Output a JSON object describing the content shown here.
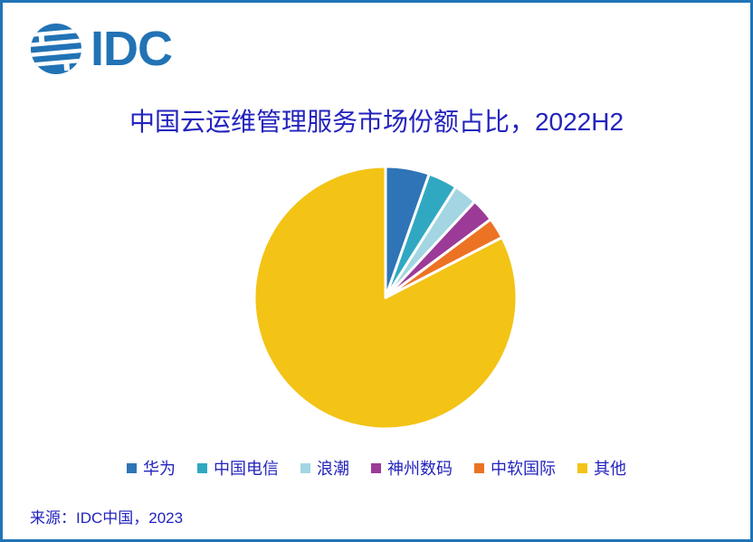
{
  "colors": {
    "brand_blue": "#2173B5",
    "border": "#2173B5",
    "text_blue": "#2323BE",
    "background": "#FFFFFF",
    "slice_gap": "#FFFFFF"
  },
  "logo": {
    "text": "IDC"
  },
  "title": "中国云运维管理服务市场份额占比，2022H2",
  "source": "来源：IDC中国，2023",
  "chart_data": {
    "type": "pie",
    "title": "中国云运维管理服务市场份额占比，2022H2",
    "start_angle_deg": 0,
    "direction": "clockwise",
    "legend_position": "bottom",
    "data_labels_shown": false,
    "values_estimated_from_angles": true,
    "slices": [
      {
        "label": "华为",
        "value": 5.4,
        "color": "#2E74B6"
      },
      {
        "label": "中国电信",
        "value": 3.6,
        "color": "#31A8C1"
      },
      {
        "label": "浪潮",
        "value": 2.9,
        "color": "#A3D6E2"
      },
      {
        "label": "神州数码",
        "value": 2.9,
        "color": "#9C3A98"
      },
      {
        "label": "中软国际",
        "value": 2.6,
        "color": "#EC7323"
      },
      {
        "label": "其他",
        "value": 82.6,
        "color": "#F3C316"
      }
    ]
  }
}
